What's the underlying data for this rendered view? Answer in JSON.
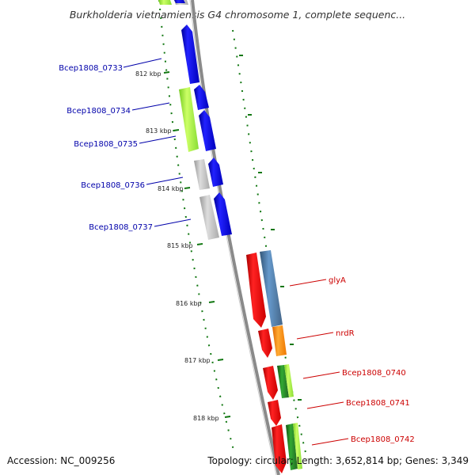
{
  "title": "Burkholderia vietnamiensis G4 chromosome 1, complete sequenc...",
  "footer": {
    "accession": "Accession: NC_009256",
    "summary": "Topology: circular; Length: 3,652,814 bp; Genes: 3,349"
  },
  "scale_labels": [
    "812 kbp",
    "813 kbp",
    "814 kbp",
    "815 kbp",
    "816 kbp",
    "817 kbp",
    "818 kbp"
  ],
  "left_genes": [
    "Bcep1808_0733",
    "Bcep1808_0734",
    "Bcep1808_0735",
    "Bcep1808_0736",
    "Bcep1808_0737"
  ],
  "right_genes": [
    "glyA",
    "nrdR",
    "Bcep1808_0740",
    "Bcep1808_0741",
    "Bcep1808_0742"
  ],
  "colors": {
    "left_label": "#0000aa",
    "right_label": "#cc0000",
    "cds_left": "#0000ee",
    "cds_right": "#ee0000",
    "backbone": "#888888",
    "ticks": "#117711"
  }
}
